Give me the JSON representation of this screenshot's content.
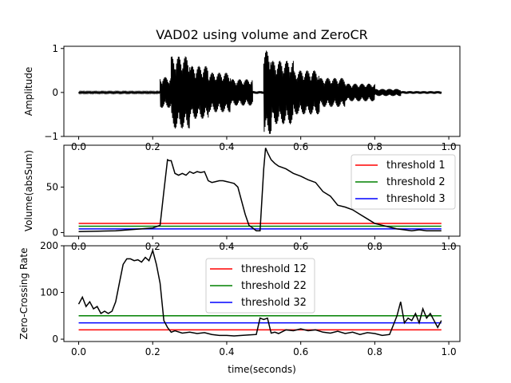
{
  "title": "VAD02 using volume and ZeroCR",
  "colors": {
    "red": "#ff0000",
    "green": "#008000",
    "blue": "#0000ff",
    "signal": "#000000"
  },
  "chart_data": [
    {
      "type": "line",
      "title": "VAD02 using volume and ZeroCR",
      "xlabel": "",
      "ylabel": "Amplitude",
      "xlim": [
        -0.04,
        1.03
      ],
      "ylim": [
        -1,
        1.05
      ],
      "xticks": [
        "0.0",
        "0.2",
        "0.4",
        "0.6",
        "0.8",
        "1.0"
      ],
      "yticks": [
        "−1",
        "0",
        "1"
      ],
      "series": [
        {
          "segments": [
            {
              "x0": 0.0,
              "x1": 0.22,
              "amp": 0.02
            },
            {
              "x0": 0.22,
              "x1": 0.25,
              "amp": 0.35
            },
            {
              "x0": 0.25,
              "x1": 0.3,
              "amp": 0.82
            },
            {
              "x0": 0.3,
              "x1": 0.35,
              "amp": 0.6
            },
            {
              "x0": 0.35,
              "x1": 0.41,
              "amp": 0.45
            },
            {
              "x0": 0.41,
              "x1": 0.47,
              "amp": 0.3
            },
            {
              "x0": 0.47,
              "x1": 0.5,
              "amp": 0.03
            },
            {
              "x0": 0.5,
              "x1": 0.52,
              "amp": 0.95
            },
            {
              "x0": 0.52,
              "x1": 0.58,
              "amp": 0.72
            },
            {
              "x0": 0.58,
              "x1": 0.65,
              "amp": 0.5
            },
            {
              "x0": 0.65,
              "x1": 0.72,
              "amp": 0.33
            },
            {
              "x0": 0.72,
              "x1": 0.8,
              "amp": 0.2
            },
            {
              "x0": 0.8,
              "x1": 0.87,
              "amp": 0.08
            },
            {
              "x0": 0.87,
              "x1": 0.98,
              "amp": 0.03
            }
          ]
        }
      ]
    },
    {
      "type": "line",
      "xlabel": "",
      "ylabel": "Volume(absSum)",
      "xlim": [
        -0.04,
        1.03
      ],
      "ylim": [
        -4,
        96
      ],
      "xticks": [
        "0.0",
        "0.2",
        "0.4",
        "0.6",
        "0.8",
        "1.0"
      ],
      "yticks": [
        "0",
        "50"
      ],
      "legend": "top-right",
      "series": [
        {
          "x": [
            0.0,
            0.1,
            0.2,
            0.22,
            0.23,
            0.24,
            0.245,
            0.25,
            0.26,
            0.27,
            0.28,
            0.29,
            0.3,
            0.31,
            0.32,
            0.33,
            0.34,
            0.35,
            0.36,
            0.37,
            0.38,
            0.39,
            0.4,
            0.41,
            0.42,
            0.43,
            0.44,
            0.45,
            0.46,
            0.47,
            0.48,
            0.49,
            0.5,
            0.505,
            0.51,
            0.52,
            0.53,
            0.54,
            0.56,
            0.58,
            0.6,
            0.62,
            0.64,
            0.66,
            0.68,
            0.7,
            0.72,
            0.74,
            0.76,
            0.78,
            0.8,
            0.82,
            0.84,
            0.86,
            0.88,
            0.9,
            0.92,
            0.94,
            0.96,
            0.98
          ],
          "values": [
            1,
            2,
            5,
            8,
            45,
            80,
            79,
            79,
            65,
            63,
            65,
            63,
            67,
            65,
            67,
            66,
            67,
            57,
            55,
            56,
            57,
            57,
            56,
            55,
            54,
            50,
            35,
            20,
            8,
            5,
            2,
            2,
            70,
            93,
            88,
            80,
            76,
            73,
            70,
            65,
            62,
            58,
            55,
            45,
            40,
            30,
            28,
            25,
            20,
            15,
            10,
            8,
            6,
            4,
            3,
            2,
            3,
            2,
            2,
            2
          ]
        },
        {
          "name": "threshold 1",
          "values": [
            10,
            10
          ]
        },
        {
          "name": "threshold 2",
          "values": [
            7,
            7
          ]
        },
        {
          "name": "threshold 3",
          "values": [
            4,
            4
          ]
        }
      ]
    },
    {
      "type": "line",
      "xlabel": "time(seconds)",
      "ylabel": "Zero-Crossing Rate",
      "xlim": [
        -0.04,
        1.03
      ],
      "ylim": [
        -5,
        200
      ],
      "xticks": [
        "0.0",
        "0.2",
        "0.4",
        "0.6",
        "0.8",
        "1.0"
      ],
      "yticks": [
        "0",
        "100",
        "200"
      ],
      "legend": "top-center",
      "series": [
        {
          "x": [
            0.0,
            0.01,
            0.02,
            0.03,
            0.04,
            0.05,
            0.06,
            0.07,
            0.08,
            0.09,
            0.1,
            0.11,
            0.12,
            0.13,
            0.14,
            0.15,
            0.16,
            0.17,
            0.18,
            0.19,
            0.2,
            0.21,
            0.22,
            0.23,
            0.24,
            0.25,
            0.26,
            0.28,
            0.3,
            0.32,
            0.34,
            0.36,
            0.38,
            0.4,
            0.42,
            0.44,
            0.46,
            0.48,
            0.49,
            0.5,
            0.51,
            0.52,
            0.53,
            0.54,
            0.56,
            0.58,
            0.6,
            0.62,
            0.64,
            0.66,
            0.68,
            0.7,
            0.72,
            0.74,
            0.76,
            0.78,
            0.8,
            0.82,
            0.84,
            0.85,
            0.86,
            0.87,
            0.88,
            0.89,
            0.9,
            0.91,
            0.92,
            0.93,
            0.94,
            0.95,
            0.96,
            0.97,
            0.98
          ],
          "values": [
            75,
            90,
            70,
            80,
            65,
            70,
            55,
            60,
            55,
            60,
            80,
            120,
            160,
            172,
            172,
            168,
            170,
            165,
            175,
            168,
            190,
            160,
            120,
            40,
            25,
            15,
            18,
            13,
            15,
            12,
            14,
            10,
            8,
            8,
            7,
            8,
            9,
            10,
            45,
            42,
            45,
            13,
            15,
            12,
            20,
            18,
            22,
            18,
            20,
            15,
            13,
            17,
            12,
            15,
            10,
            14,
            12,
            8,
            10,
            30,
            50,
            80,
            35,
            45,
            40,
            55,
            35,
            65,
            45,
            55,
            40,
            25,
            40
          ]
        },
        {
          "name": "threshold 12",
          "values": [
            20,
            20
          ]
        },
        {
          "name": "threshold 22",
          "values": [
            50,
            50
          ]
        },
        {
          "name": "threshold 32",
          "values": [
            35,
            35
          ]
        }
      ]
    }
  ]
}
